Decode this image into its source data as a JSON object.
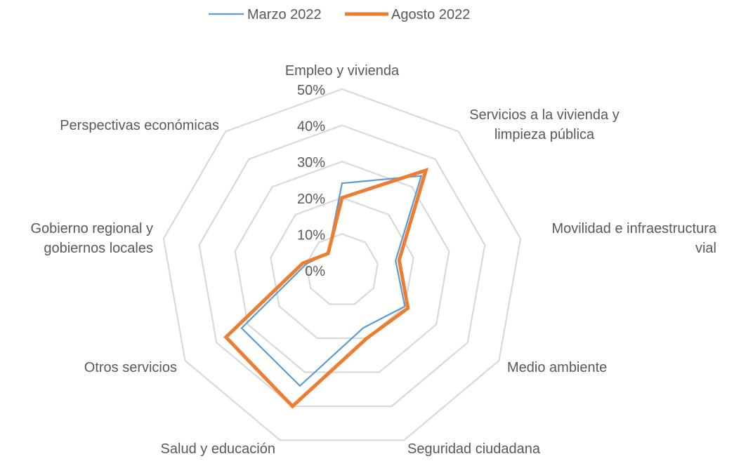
{
  "chart_data": {
    "type": "radar",
    "categories": [
      "Empleo y vivienda",
      "Servicios a la vivienda y limpieza pública",
      "Movilidad e infraestructura vial",
      "Medio ambiente",
      "Seguridad ciudadana",
      "Salud y educación",
      "Otros servicios",
      "Gobierno regional y gobiernos locales",
      "Perspectivas económicas"
    ],
    "category_lines": [
      [
        "Empleo y vivienda"
      ],
      [
        "Servicios a la vivienda y",
        "limpieza pública"
      ],
      [
        "Movilidad e infraestructura",
        "vial"
      ],
      [
        "Medio ambiente"
      ],
      [
        "Seguridad ciudadana"
      ],
      [
        "Salud y educación"
      ],
      [
        "Otros servicios"
      ],
      [
        "Gobierno regional y",
        "gobiernos locales"
      ],
      [
        "Perspectivas económicas"
      ]
    ],
    "series": [
      {
        "name": "Marzo 2022",
        "color": "#5B9BD5",
        "values": [
          24,
          34,
          15,
          20,
          17,
          34,
          32,
          10,
          6
        ]
      },
      {
        "name": "Agosto 2022",
        "color": "#ED7D31",
        "values": [
          20,
          36,
          16,
          21,
          20,
          40,
          37,
          11,
          6
        ]
      }
    ],
    "r_ticks": [
      "0%",
      "10%",
      "20%",
      "30%",
      "40%",
      "50%"
    ],
    "r_range": [
      0,
      50
    ],
    "grid": true,
    "grid_color": "#D9D9D9",
    "legend_position": "top"
  }
}
